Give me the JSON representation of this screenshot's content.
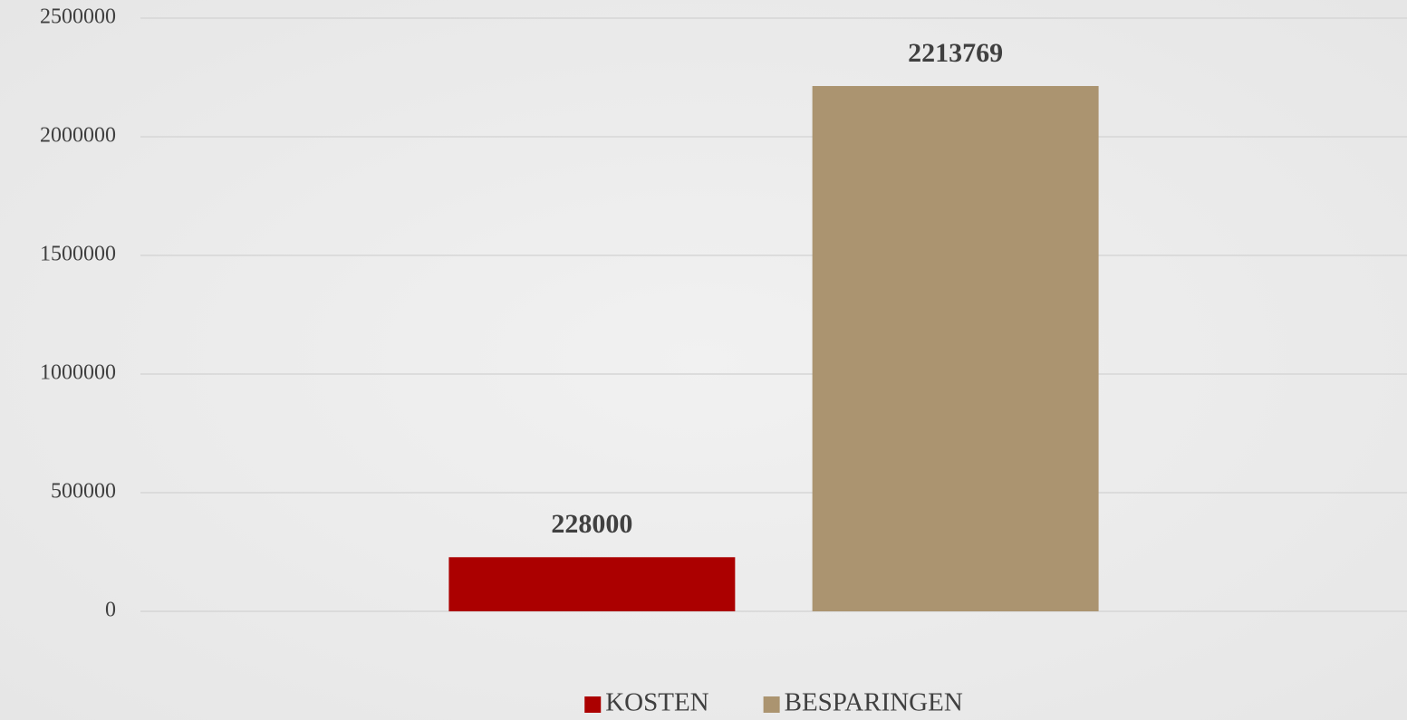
{
  "chart_data": {
    "type": "bar",
    "categories": [
      null
    ],
    "series": [
      {
        "name": "KOSTEN",
        "color": "#ab0000",
        "values": [
          228000
        ]
      },
      {
        "name": "BESPARINGEN",
        "color": "#ab9470",
        "values": [
          2213769
        ]
      }
    ],
    "ylim": [
      0,
      2500000
    ],
    "yticks": [
      0,
      500000,
      1000000,
      1500000,
      2000000,
      2500000
    ],
    "grid": true,
    "legend": "bottom"
  }
}
